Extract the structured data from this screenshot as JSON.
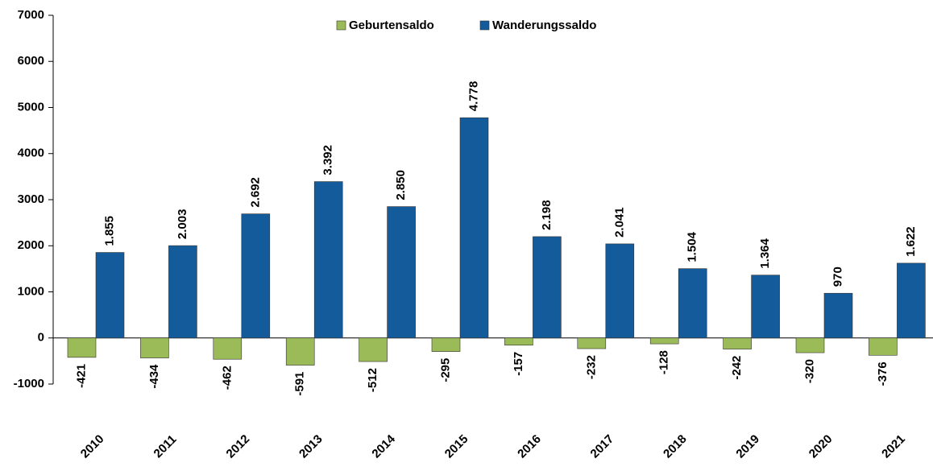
{
  "chart_data": {
    "type": "bar",
    "categories": [
      "2010",
      "2011",
      "2012",
      "2013",
      "2014",
      "2015",
      "2016",
      "2017",
      "2018",
      "2019",
      "2020",
      "2021"
    ],
    "series": [
      {
        "name": "Geburtensaldo",
        "color": "#9bbb59",
        "values": [
          -421,
          -434,
          -462,
          -591,
          -512,
          -295,
          -157,
          -232,
          -128,
          -242,
          -320,
          -376
        ]
      },
      {
        "name": "Wanderungssaldo",
        "color": "#135b9b",
        "values": [
          1855,
          2003,
          2692,
          3392,
          2850,
          4778,
          2198,
          2041,
          1504,
          1364,
          970,
          1622
        ],
        "value_labels": [
          "1.855",
          "2.003",
          "2.692",
          "3.392",
          "2.850",
          "4.778",
          "2.198",
          "2.041",
          "1.504",
          "1.364",
          "970",
          "1.622"
        ]
      }
    ],
    "ylim": [
      -1000,
      7000
    ],
    "yticks": [
      -1000,
      0,
      1000,
      2000,
      3000,
      4000,
      5000,
      6000,
      7000
    ],
    "legend": "top"
  }
}
